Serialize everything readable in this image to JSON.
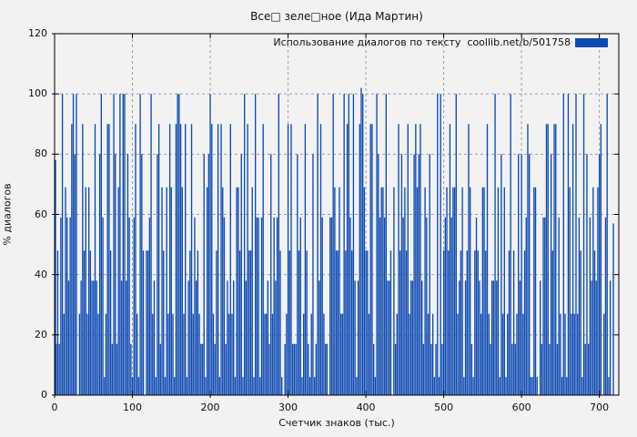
{
  "chart_data": {
    "type": "bar",
    "title": "Все□ зеле□ное (Ида Мартин)",
    "xlabel": "Счетчик знаков (тыс.)",
    "ylabel": "% диалогов",
    "legend": {
      "label": "Использование диалогов по тексту  coollib.net/b/501758",
      "swatch_color": "#0d4ab2",
      "position": "top-right-inside"
    },
    "xlim": [
      0,
      725
    ],
    "ylim": [
      0,
      120
    ],
    "x_ticks": [
      0,
      100,
      200,
      300,
      400,
      500,
      600,
      700
    ],
    "y_ticks": [
      0,
      20,
      40,
      60,
      80,
      100,
      120
    ],
    "grid": true,
    "grid_style": "dashed",
    "bar_color": "#0d4ab2",
    "background_color": "#f2f2f2",
    "grid_color": "#9e9e9e",
    "border_color": "#000000",
    "x_start": 0,
    "x_step": 2,
    "values": [
      78,
      17,
      48,
      17,
      59,
      100,
      27,
      69,
      59,
      38,
      59,
      90,
      100,
      80,
      100,
      0,
      27,
      38,
      90,
      48,
      69,
      27,
      69,
      48,
      38,
      38,
      90,
      38,
      27,
      80,
      100,
      59,
      6,
      27,
      90,
      90,
      48,
      17,
      100,
      80,
      17,
      69,
      100,
      38,
      100,
      100,
      38,
      80,
      59,
      17,
      6,
      59,
      90,
      27,
      6,
      100,
      80,
      48,
      0,
      48,
      48,
      59,
      100,
      27,
      38,
      6,
      80,
      90,
      17,
      69,
      48,
      6,
      69,
      27,
      90,
      69,
      27,
      6,
      90,
      100,
      100,
      90,
      69,
      27,
      90,
      6,
      38,
      48,
      90,
      27,
      59,
      38,
      48,
      27,
      17,
      17,
      80,
      6,
      69,
      80,
      100,
      90,
      27,
      17,
      48,
      90,
      6,
      90,
      69,
      59,
      17,
      38,
      27,
      90,
      27,
      38,
      6,
      69,
      69,
      48,
      80,
      6,
      100,
      38,
      90,
      48,
      48,
      69,
      6,
      100,
      59,
      59,
      6,
      59,
      90,
      27,
      27,
      38,
      17,
      80,
      27,
      59,
      38,
      59,
      100,
      48,
      6,
      0,
      17,
      27,
      90,
      48,
      90,
      17,
      17,
      17,
      80,
      48,
      59,
      6,
      27,
      90,
      48,
      17,
      6,
      27,
      80,
      6,
      17,
      100,
      38,
      90,
      59,
      27,
      17,
      17,
      0,
      59,
      59,
      100,
      69,
      48,
      48,
      69,
      27,
      27,
      100,
      48,
      90,
      100,
      59,
      48,
      100,
      38,
      6,
      38,
      90,
      102,
      100,
      69,
      48,
      48,
      27,
      90,
      90,
      17,
      6,
      100,
      80,
      59,
      69,
      69,
      59,
      100,
      38,
      38,
      48,
      0,
      69,
      17,
      27,
      90,
      48,
      80,
      59,
      69,
      48,
      90,
      27,
      38,
      38,
      80,
      90,
      69,
      80,
      90,
      38,
      17,
      69,
      59,
      27,
      80,
      17,
      27,
      6,
      17,
      100,
      6,
      100,
      17,
      48,
      59,
      69,
      48,
      90,
      59,
      69,
      69,
      100,
      27,
      38,
      48,
      69,
      6,
      38,
      48,
      90,
      69,
      17,
      6,
      48,
      59,
      48,
      38,
      27,
      69,
      69,
      48,
      90,
      27,
      17,
      38,
      38,
      100,
      38,
      69,
      6,
      80,
      27,
      69,
      6,
      27,
      48,
      100,
      17,
      48,
      17,
      27,
      80,
      38,
      80,
      27,
      48,
      59,
      90,
      80,
      6,
      6,
      69,
      69,
      6,
      0,
      38,
      17,
      59,
      59,
      90,
      90,
      17,
      80,
      48,
      90,
      90,
      17,
      59,
      27,
      6,
      100,
      27,
      6,
      100,
      69,
      27,
      90,
      27,
      100,
      27,
      59,
      48,
      6,
      100,
      17,
      80,
      17,
      59,
      38,
      69,
      48,
      38,
      69,
      80,
      90,
      0,
      27,
      59,
      100,
      6,
      38,
      0,
      57
    ]
  }
}
